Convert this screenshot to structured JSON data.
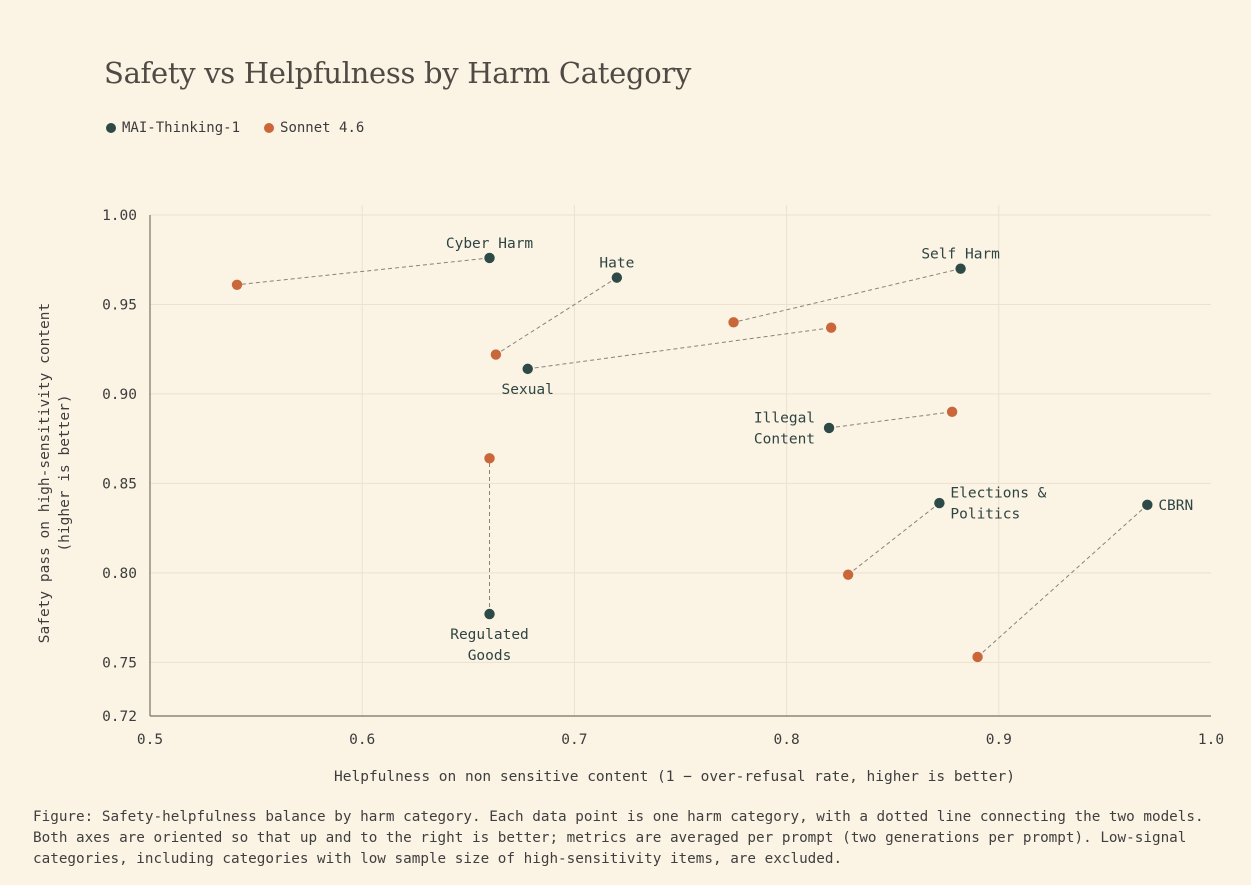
{
  "title": "Safety vs Helpfulness by Harm Category",
  "legend": [
    {
      "label": "MAI-Thinking-1",
      "color": "#2d4a47"
    },
    {
      "label": "Sonnet 4.6",
      "color": "#c9673b"
    }
  ],
  "caption": "Figure: Safety-helpfulness balance by harm category. Each data point is one harm category, with a dotted line connecting the two models. Both axes are oriented so that up and to the right is better; metrics are averaged per prompt (two generations per prompt). Low-signal categories, including categories with low sample size of high-sensitivity items, are excluded.",
  "chart_data": {
    "type": "scatter",
    "title": "Safety vs Helpfulness by Harm Category",
    "xlabel": "Helpfulness on non sensitive content (1 − over-refusal rate, higher is better)",
    "ylabel": [
      "Safety pass on high-sensitivity content",
      "(higher is better)"
    ],
    "xlim": [
      0.5,
      1.0
    ],
    "ylim": [
      0.72,
      1.0
    ],
    "xticks": [
      "0.5",
      "0.6",
      "0.7",
      "0.8",
      "0.9",
      "1.0"
    ],
    "yticks": [
      "0.72",
      "0.75",
      "0.80",
      "0.85",
      "0.90",
      "0.95",
      "1.00"
    ],
    "grid": true,
    "legend_position": "top-left",
    "series": [
      {
        "name": "MAI-Thinking-1",
        "color": "#2d4a47"
      },
      {
        "name": "Sonnet 4.6",
        "color": "#c9673b"
      }
    ],
    "categories": [
      {
        "label": [
          "Cyber Harm"
        ],
        "mai": [
          0.66,
          0.976
        ],
        "sonnet": [
          0.541,
          0.961
        ],
        "label_pos": "above"
      },
      {
        "label": [
          "Hate"
        ],
        "mai": [
          0.72,
          0.965
        ],
        "sonnet": [
          0.663,
          0.922
        ],
        "label_pos": "above"
      },
      {
        "label": [
          "Self Harm"
        ],
        "mai": [
          0.882,
          0.97
        ],
        "sonnet": [
          0.775,
          0.94
        ],
        "label_pos": "above"
      },
      {
        "label": [
          "Sexual"
        ],
        "mai": [
          0.678,
          0.914
        ],
        "sonnet": [
          0.821,
          0.937
        ],
        "label_pos": "below"
      },
      {
        "label": [
          "Illegal",
          "Content"
        ],
        "mai": [
          0.82,
          0.881
        ],
        "sonnet": [
          0.878,
          0.89
        ],
        "label_pos": "left"
      },
      {
        "label": [
          "Elections &",
          "Politics"
        ],
        "mai": [
          0.872,
          0.839
        ],
        "sonnet": [
          0.829,
          0.799
        ],
        "label_pos": "right"
      },
      {
        "label": [
          "CBRN"
        ],
        "mai": [
          0.97,
          0.838
        ],
        "sonnet": [
          0.89,
          0.753
        ],
        "label_pos": "right"
      },
      {
        "label": [
          "Regulated",
          "Goods"
        ],
        "mai": [
          0.66,
          0.777
        ],
        "sonnet": [
          0.66,
          0.864
        ],
        "label_pos": "below"
      }
    ]
  }
}
